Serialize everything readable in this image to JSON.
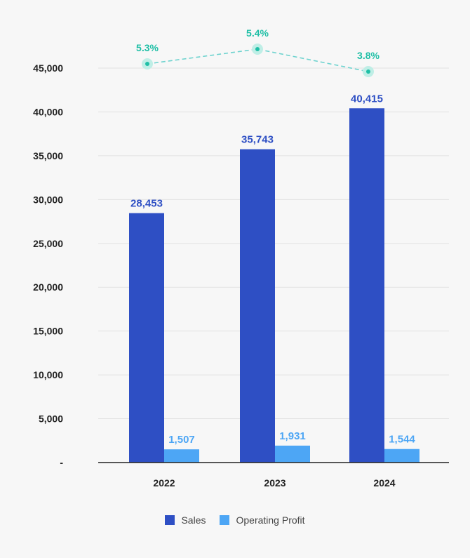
{
  "chart_data": {
    "type": "bar",
    "categories": [
      "2022",
      "2023",
      "2024"
    ],
    "series": [
      {
        "name": "Sales",
        "values": [
          28453,
          35743,
          40415
        ],
        "labels": [
          "28,453",
          "35,743",
          "40,415"
        ],
        "color": "#2e4fc4"
      },
      {
        "name": "Operating Profit",
        "values": [
          1507,
          1931,
          1544
        ],
        "labels": [
          "1,507",
          "1,931",
          "1,544"
        ],
        "color": "#4da6f5"
      }
    ],
    "margin_series": {
      "type": "line",
      "values": [
        5.3,
        5.4,
        3.8
      ],
      "labels": [
        "5.3%",
        "5.4%",
        "3.8%"
      ],
      "color": "#1fbfa6",
      "style": "dashed"
    },
    "ylim": [
      0,
      45000
    ],
    "yticks": [
      0,
      5000,
      10000,
      15000,
      20000,
      25000,
      30000,
      35000,
      40000,
      45000
    ],
    "ytick_labels": [
      "-",
      "5,000",
      "10,000",
      "15,000",
      "20,000",
      "25,000",
      "30,000",
      "35,000",
      "40,000",
      "45,000"
    ],
    "grid": true,
    "legend_position": "bottom-center"
  }
}
